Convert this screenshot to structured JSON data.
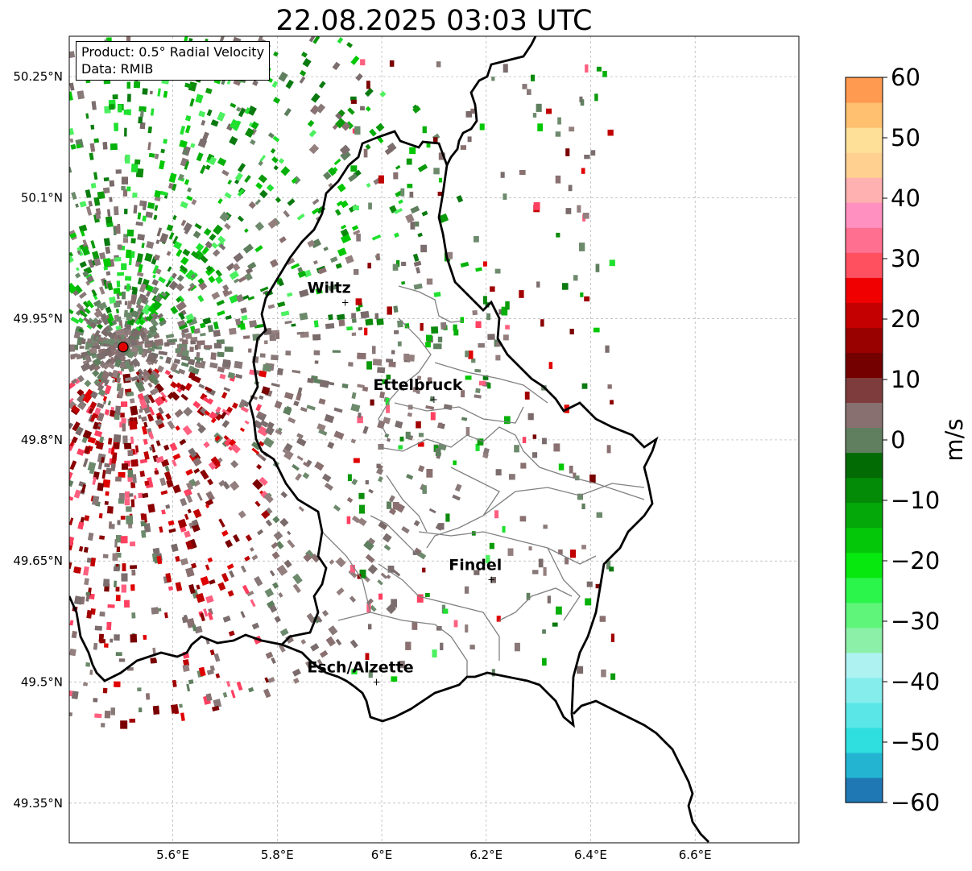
{
  "title": "22.08.2025 03:03 UTC",
  "info": {
    "product": "Product: 0.5° Radial Velocity",
    "data_source": "Data: RMIB"
  },
  "map": {
    "lon_range": [
      5.4,
      6.8
    ],
    "lat_range": [
      49.3,
      50.3
    ],
    "lat_ticks": [
      {
        "value": 50.25,
        "label": "50.25°N"
      },
      {
        "value": 50.1,
        "label": "50.1°N"
      },
      {
        "value": 49.95,
        "label": "49.95°N"
      },
      {
        "value": 49.8,
        "label": "49.8°N"
      },
      {
        "value": 49.65,
        "label": "49.65°N"
      },
      {
        "value": 49.5,
        "label": "49.5°N"
      },
      {
        "value": 49.35,
        "label": "49.35°N"
      }
    ],
    "lon_ticks": [
      {
        "value": 5.6,
        "label": "5.6°E"
      },
      {
        "value": 5.8,
        "label": "5.8°E"
      },
      {
        "value": 6.0,
        "label": "6°E"
      },
      {
        "value": 6.2,
        "label": "6.2°E"
      },
      {
        "value": 6.4,
        "label": "6.4°E"
      },
      {
        "value": 6.6,
        "label": "6.6°E"
      }
    ],
    "gridlines": true,
    "radar_site": {
      "lon": 5.505,
      "lat": 49.915
    },
    "cities": [
      {
        "name": "Wiltz",
        "lon": 5.93,
        "lat": 49.97
      },
      {
        "name": "Ettelbruck",
        "lon": 6.1,
        "lat": 49.85
      },
      {
        "name": "Findel",
        "lon": 6.21,
        "lat": 49.627
      },
      {
        "name": "Esch/Alzette",
        "lon": 5.99,
        "lat": 49.5
      }
    ]
  },
  "colorbar": {
    "label": "m/s",
    "range": [
      -60,
      60
    ],
    "ticks": [
      {
        "value": 60,
        "label": "60"
      },
      {
        "value": 50,
        "label": "50"
      },
      {
        "value": 40,
        "label": "40"
      },
      {
        "value": 30,
        "label": "30"
      },
      {
        "value": 20,
        "label": "20"
      },
      {
        "value": 10,
        "label": "10"
      },
      {
        "value": 0,
        "label": "0"
      },
      {
        "value": -10,
        "label": "−10"
      },
      {
        "value": -20,
        "label": "−20"
      },
      {
        "value": -30,
        "label": "−30"
      },
      {
        "value": -40,
        "label": "−40"
      },
      {
        "value": -50,
        "label": "−50"
      },
      {
        "value": -60,
        "label": "−60"
      }
    ],
    "colors_bottom_to_top": [
      "#1f77b4",
      "#23b4d2",
      "#2fdede",
      "#5ae6e6",
      "#86eded",
      "#aef2f2",
      "#8df0a8",
      "#5ef57a",
      "#2bf54a",
      "#06e80e",
      "#05c70a",
      "#04a808",
      "#038a06",
      "#026b04",
      "#5f7f5f",
      "#887070",
      "#7f3c3c",
      "#740000",
      "#990000",
      "#c40000",
      "#f00000",
      "#ff5060",
      "#ff7090",
      "#ff90c0",
      "#ffb0b0",
      "#ffd090",
      "#ffe098",
      "#ffc070",
      "#ff9a50"
    ]
  },
  "colors": {
    "outbound_dark": "#7a0000",
    "inbound_green": "#0a9a0a",
    "near_zero": "#887878",
    "near_zero_green": "#5f7f5f",
    "border": "#000000",
    "canton": "#808080"
  }
}
